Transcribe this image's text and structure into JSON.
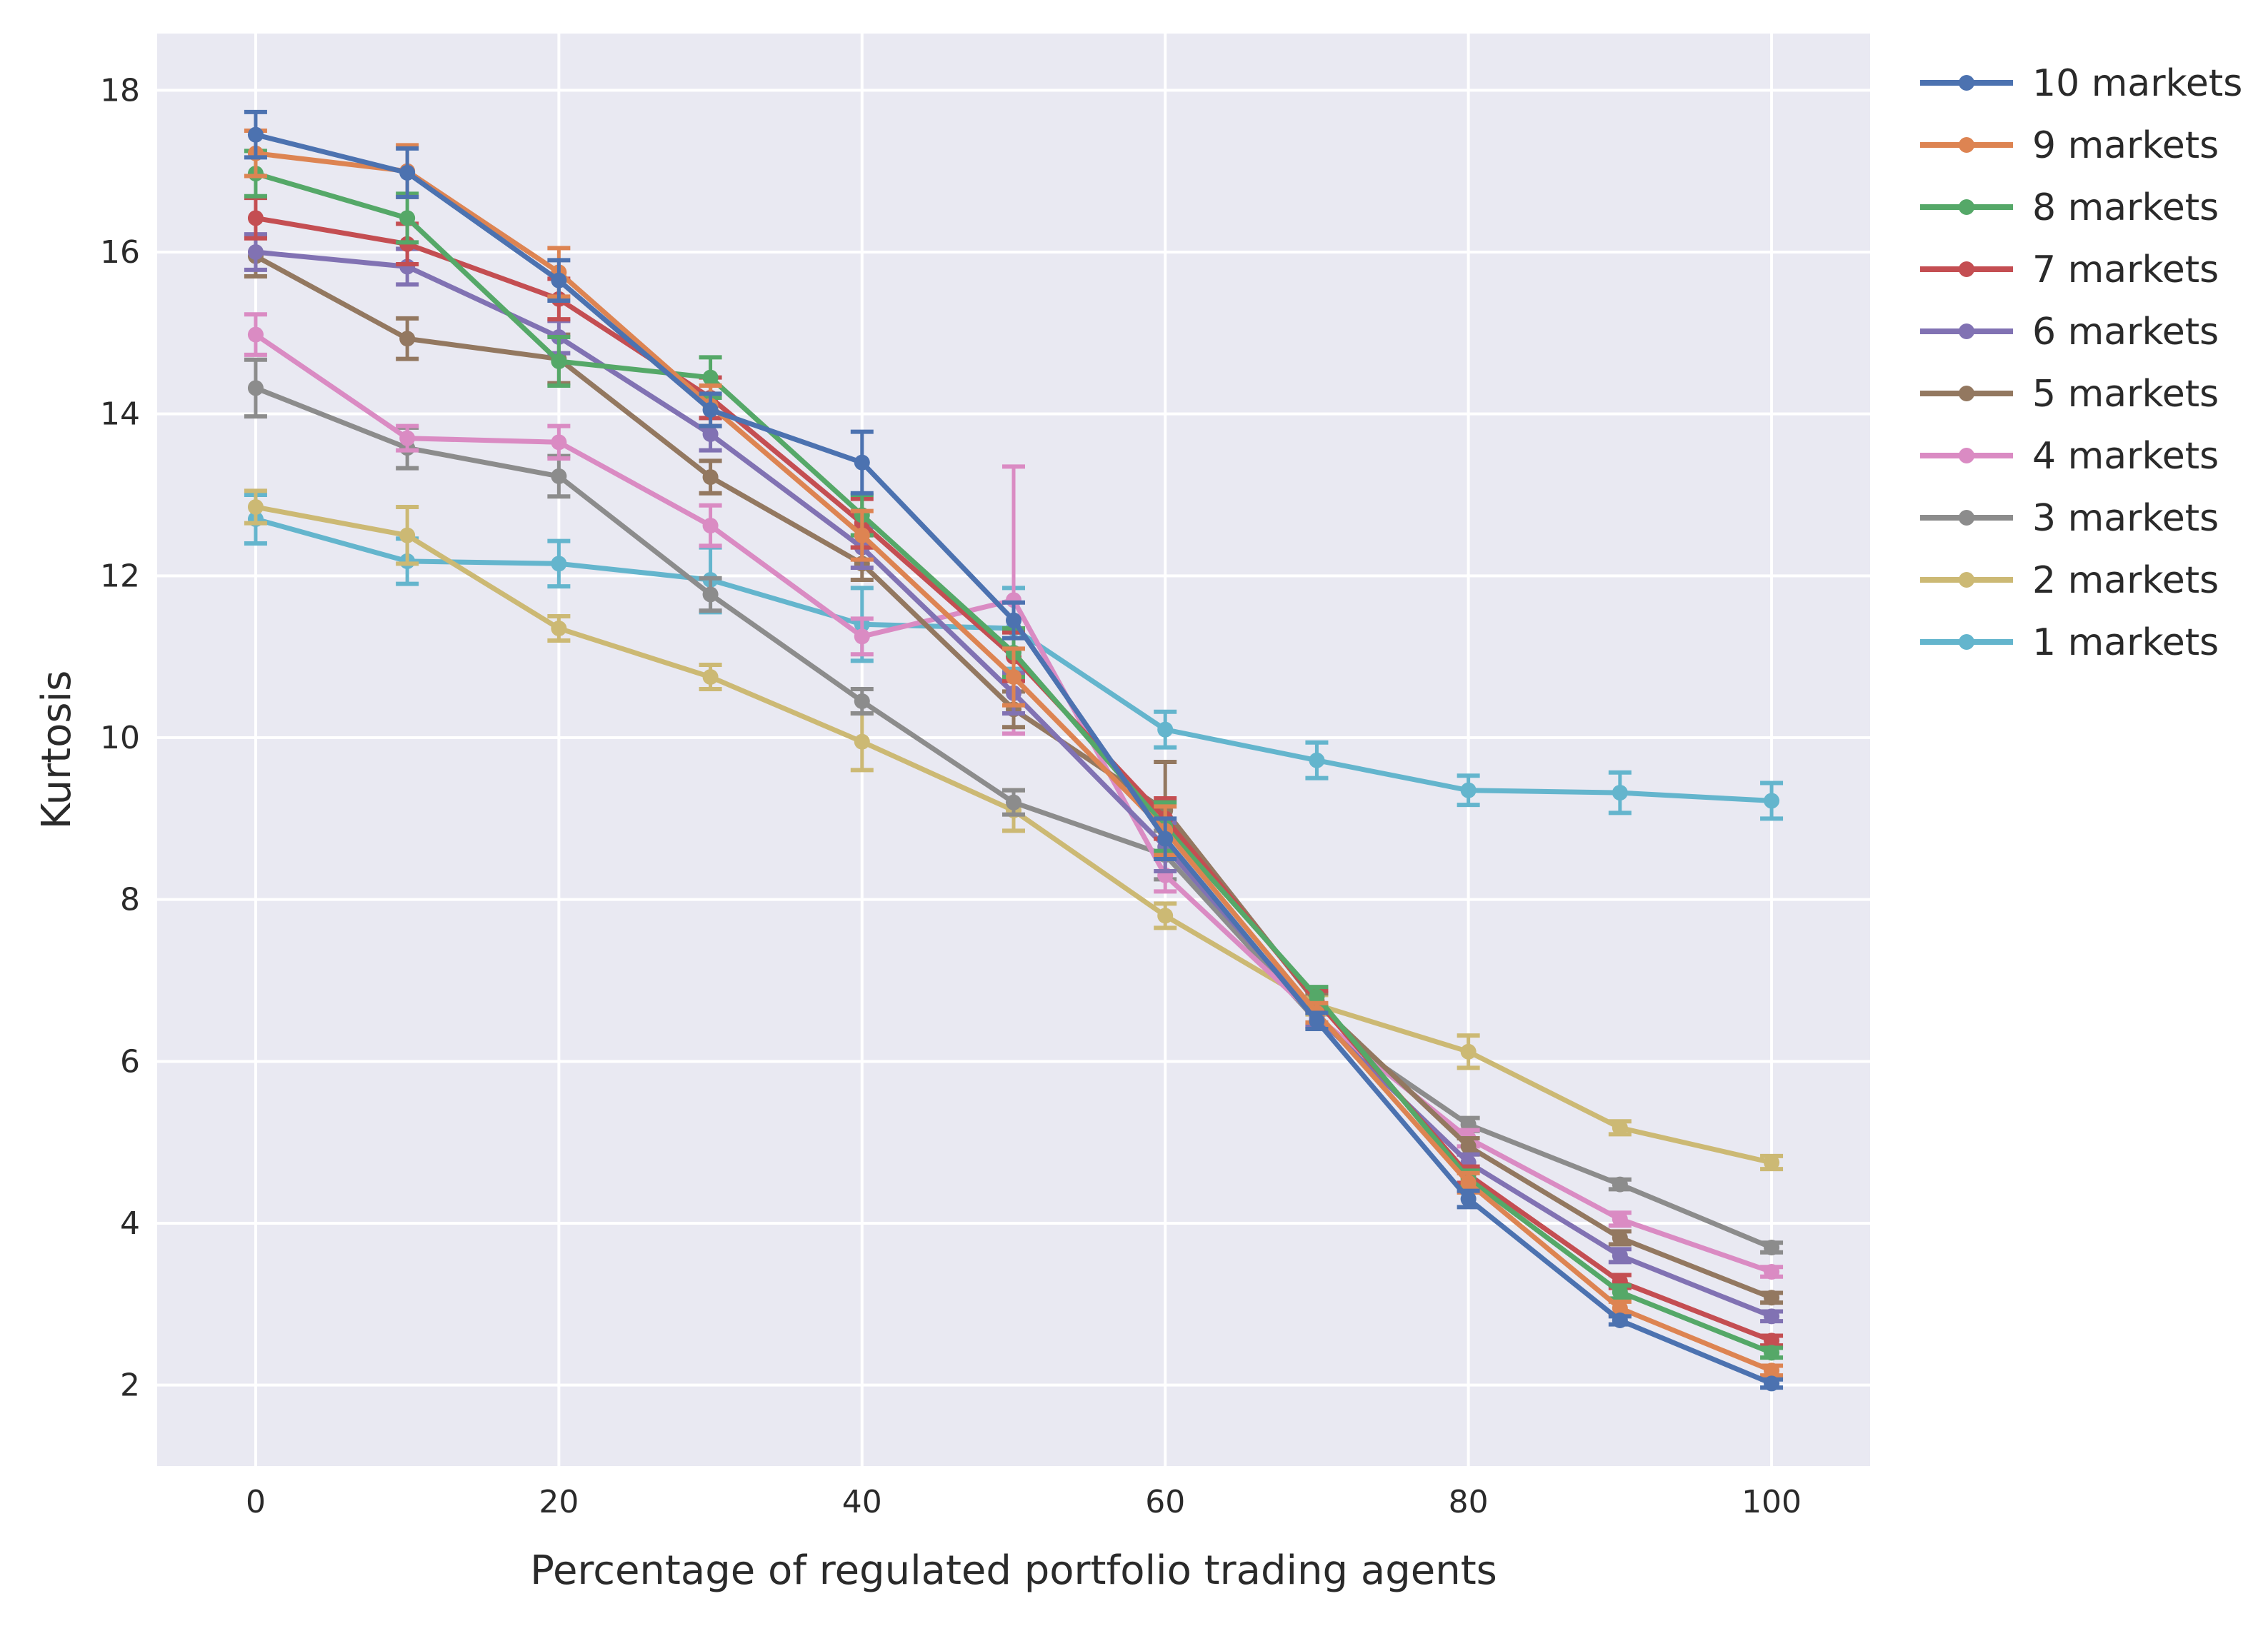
{
  "chart_data": {
    "type": "line",
    "title": "",
    "xlabel": "Percentage of regulated portfolio trading agents",
    "ylabel": "Kurtosis",
    "x": [
      0,
      10,
      20,
      30,
      40,
      50,
      60,
      70,
      80,
      90,
      100
    ],
    "xlim": [
      -6.5,
      106.5
    ],
    "ylim": [
      1.0,
      18.7
    ],
    "xticks": [
      0,
      20,
      40,
      60,
      80,
      100
    ],
    "yticks": [
      2,
      4,
      6,
      8,
      10,
      12,
      14,
      16,
      18
    ],
    "grid": true,
    "legend_position": "outside-top-right",
    "background": "#e9e9f2",
    "series": [
      {
        "name": "10 markets",
        "color": "#4c72b0",
        "values": [
          17.45,
          16.98,
          15.65,
          14.05,
          13.4,
          11.45,
          8.75,
          6.5,
          4.3,
          2.8,
          2.02
        ],
        "errors": [
          0.28,
          0.3,
          0.25,
          0.2,
          0.38,
          0.22,
          0.25,
          0.1,
          0.1,
          0.05,
          0.05
        ]
      },
      {
        "name": "9 markets",
        "color": "#dd8452",
        "values": [
          17.22,
          17.0,
          15.75,
          14.1,
          12.5,
          10.75,
          8.85,
          6.6,
          4.5,
          2.95,
          2.18
        ],
        "errors": [
          0.28,
          0.32,
          0.3,
          0.25,
          0.3,
          0.35,
          0.3,
          0.12,
          0.12,
          0.08,
          0.06
        ]
      },
      {
        "name": "8 markets",
        "color": "#55a868",
        "values": [
          16.97,
          16.42,
          14.65,
          14.45,
          12.75,
          11.05,
          8.9,
          6.8,
          4.55,
          3.15,
          2.4
        ],
        "errors": [
          0.28,
          0.3,
          0.3,
          0.25,
          0.25,
          0.3,
          0.3,
          0.12,
          0.1,
          0.08,
          0.06
        ]
      },
      {
        "name": "7 markets",
        "color": "#c44e52",
        "values": [
          16.42,
          16.1,
          15.42,
          14.2,
          12.65,
          11.0,
          9.0,
          6.75,
          4.6,
          3.28,
          2.55
        ],
        "errors": [
          0.25,
          0.25,
          0.25,
          0.25,
          0.3,
          0.3,
          0.25,
          0.12,
          0.1,
          0.08,
          0.06
        ]
      },
      {
        "name": "6 markets",
        "color": "#8172b3",
        "values": [
          16.0,
          15.82,
          14.95,
          13.75,
          12.35,
          10.55,
          8.65,
          6.55,
          4.75,
          3.6,
          2.85
        ],
        "errors": [
          0.22,
          0.22,
          0.2,
          0.2,
          0.25,
          0.25,
          0.3,
          0.12,
          0.1,
          0.08,
          0.06
        ]
      },
      {
        "name": "5 markets",
        "color": "#937860",
        "values": [
          15.95,
          14.93,
          14.68,
          13.22,
          12.15,
          10.35,
          9.1,
          6.72,
          4.95,
          3.82,
          3.08
        ],
        "errors": [
          0.25,
          0.25,
          0.3,
          0.2,
          0.2,
          0.22,
          0.6,
          0.12,
          0.1,
          0.08,
          0.06
        ]
      },
      {
        "name": "4 markets",
        "color": "#da8bc3",
        "values": [
          14.98,
          13.7,
          13.65,
          12.62,
          11.25,
          11.7,
          8.3,
          6.55,
          5.05,
          4.05,
          3.4
        ],
        "errors": [
          0.25,
          0.15,
          0.2,
          0.25,
          0.22,
          1.65,
          0.2,
          0.1,
          0.1,
          0.08,
          0.06
        ]
      },
      {
        "name": "3 markets",
        "color": "#8c8c8c",
        "values": [
          14.32,
          13.58,
          13.23,
          11.77,
          10.45,
          9.2,
          8.55,
          6.5,
          5.22,
          4.48,
          3.7
        ],
        "errors": [
          0.35,
          0.25,
          0.25,
          0.2,
          0.15,
          0.15,
          0.3,
          0.1,
          0.08,
          0.06,
          0.06
        ]
      },
      {
        "name": "2 markets",
        "color": "#ccb974",
        "values": [
          12.85,
          12.5,
          11.35,
          10.75,
          9.95,
          9.1,
          7.8,
          6.7,
          6.12,
          5.18,
          4.75
        ],
        "errors": [
          0.2,
          0.35,
          0.15,
          0.15,
          0.35,
          0.25,
          0.15,
          0.12,
          0.2,
          0.08,
          0.08
        ]
      },
      {
        "name": "1 markets",
        "color": "#64b5cd",
        "values": [
          12.7,
          12.18,
          12.15,
          11.95,
          11.4,
          11.35,
          10.1,
          9.72,
          9.35,
          9.32,
          9.22
        ],
        "errors": [
          0.3,
          0.28,
          0.28,
          0.4,
          0.45,
          0.5,
          0.22,
          0.22,
          0.18,
          0.25,
          0.22
        ]
      }
    ]
  }
}
